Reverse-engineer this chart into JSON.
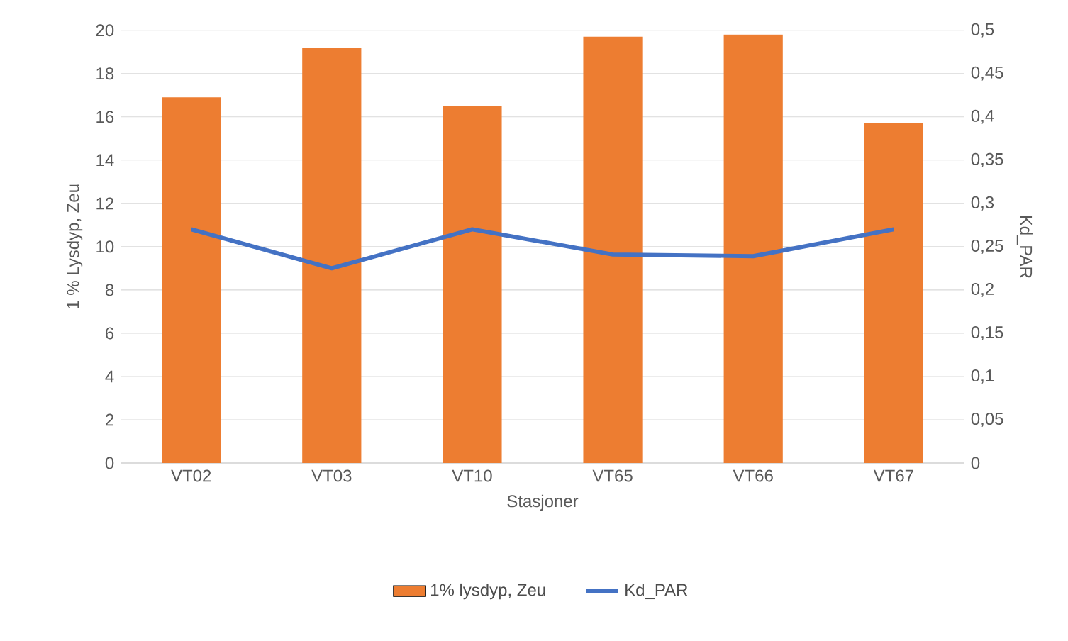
{
  "chart_data": {
    "type": "bar",
    "categories": [
      "VT02",
      "VT03",
      "VT10",
      "VT65",
      "VT66",
      "VT67"
    ],
    "series": [
      {
        "name": "1% lysdyp, Zeu",
        "color": "#ed7d31",
        "values": [
          16.9,
          19.2,
          16.5,
          19.7,
          19.8,
          15.7
        ]
      },
      {
        "name": "Kd_PAR",
        "type": "line",
        "axis": "y2",
        "color": "#4472c4",
        "values": [
          0.27,
          0.225,
          0.27,
          0.241,
          0.239,
          0.27
        ]
      }
    ],
    "xlabel": "Stasjoner",
    "ylabel": "1 % Lysdyp, Zeu",
    "y2label": "Kd_PAR",
    "ylim": [
      0,
      20
    ],
    "yticks": [
      0,
      2,
      4,
      6,
      8,
      10,
      12,
      14,
      16,
      18,
      20
    ],
    "y2lim": [
      0,
      0.5
    ],
    "y2ticks": [
      0,
      {
        "value": 0.05,
        "label": "0,05"
      },
      {
        "value": 0.1,
        "label": "0,1"
      },
      {
        "value": 0.15,
        "label": "0,15"
      },
      {
        "value": 0.2,
        "label": "0,2"
      },
      {
        "value": 0.25,
        "label": "0,25"
      },
      {
        "value": 0.3,
        "label": "0,3"
      },
      {
        "value": 0.35,
        "label": "0,35"
      },
      {
        "value": 0.4,
        "label": "0,4"
      },
      {
        "value": 0.45,
        "label": "0,45"
      },
      {
        "value": 0.5,
        "label": "0,5"
      }
    ],
    "grid": "y",
    "legend": "bottom",
    "marker": "none"
  }
}
